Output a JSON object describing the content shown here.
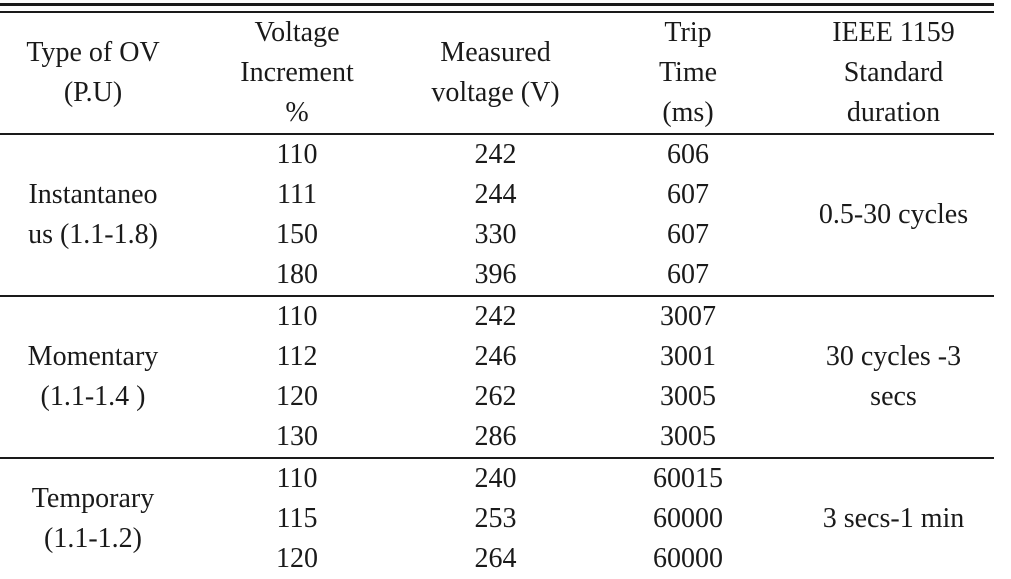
{
  "table": {
    "headers": [
      [
        "Type of OV",
        "(P.U)"
      ],
      [
        "Voltage",
        "Increment",
        "%"
      ],
      [
        "Measured",
        "voltage (V)"
      ],
      [
        "Trip",
        "Time",
        "(ms)"
      ],
      [
        "IEEE 1159",
        "Standard",
        "duration"
      ]
    ],
    "groups": [
      {
        "type": [
          "Instantaneo",
          "us (1.1-1.8)"
        ],
        "duration": [
          "0.5-30 cycles"
        ],
        "rows": [
          {
            "increment": "110",
            "voltage": "242",
            "trip": "606"
          },
          {
            "increment": "111",
            "voltage": "244",
            "trip": "607"
          },
          {
            "increment": "150",
            "voltage": "330",
            "trip": "607"
          },
          {
            "increment": "180",
            "voltage": "396",
            "trip": "607"
          }
        ]
      },
      {
        "type": [
          "Momentary",
          "(1.1-1.4 )"
        ],
        "duration": [
          "30 cycles -3",
          "secs"
        ],
        "rows": [
          {
            "increment": "110",
            "voltage": "242",
            "trip": "3007"
          },
          {
            "increment": "112",
            "voltage": "246",
            "trip": "3001"
          },
          {
            "increment": "120",
            "voltage": "262",
            "trip": "3005"
          },
          {
            "increment": "130",
            "voltage": "286",
            "trip": "3005"
          }
        ]
      },
      {
        "type": [
          "Temporary",
          "(1.1-1.2)"
        ],
        "duration": [
          "3 secs-1 min"
        ],
        "rows": [
          {
            "increment": "110",
            "voltage": "240",
            "trip": "60015"
          },
          {
            "increment": "115",
            "voltage": "253",
            "trip": "60000"
          },
          {
            "increment": "120",
            "voltage": "264",
            "trip": "60000"
          }
        ]
      }
    ]
  }
}
